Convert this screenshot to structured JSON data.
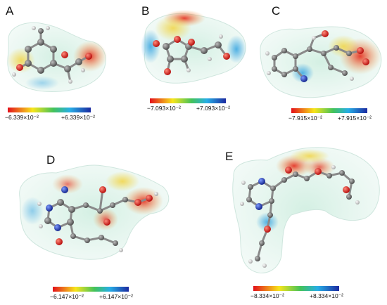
{
  "panels": [
    {
      "id": "A",
      "label": "A",
      "scale_min": "−6.339×10⁻²",
      "scale_max": "+6.339×10⁻²"
    },
    {
      "id": "B",
      "label": "B",
      "scale_min": "−7.093×10⁻²",
      "scale_max": "+7.093×10⁻²"
    },
    {
      "id": "C",
      "label": "C",
      "scale_min": "−7.915×10⁻²",
      "scale_max": "+7.915×10⁻²"
    },
    {
      "id": "D",
      "label": "D",
      "scale_min": "−6.147×10⁻²",
      "scale_max": "+6.147×10⁻²"
    },
    {
      "id": "E",
      "label": "E",
      "scale_min": "−8.334×10⁻²",
      "scale_max": "+8.334×10⁻²"
    }
  ],
  "colors": {
    "surface": "#d8eee6",
    "negative": "#e3101b",
    "positive": "#1b2aa0",
    "oxygen": "#d81e1e",
    "nitrogen": "#1e3cc8",
    "carbon": "#7a7a7a",
    "hydrogen": "#e8e8e8"
  }
}
